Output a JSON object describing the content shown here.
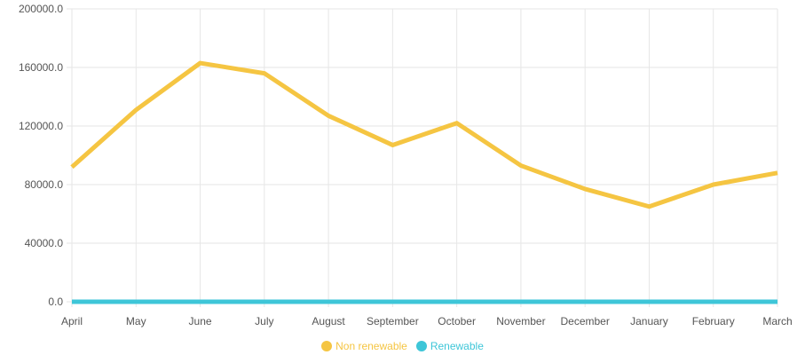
{
  "chart_data": {
    "type": "line",
    "categories": [
      "April",
      "May",
      "June",
      "July",
      "August",
      "September",
      "October",
      "November",
      "December",
      "January",
      "February",
      "March"
    ],
    "series": [
      {
        "name": "Non renewable",
        "color": "#f5c542",
        "values": [
          92000,
          131000,
          163000,
          156000,
          127000,
          107000,
          122000,
          93000,
          77000,
          65000,
          80000,
          88000
        ]
      },
      {
        "name": "Renewable",
        "color": "#3ec6d8",
        "values": [
          0,
          0,
          0,
          0,
          0,
          0,
          0,
          0,
          0,
          0,
          0,
          0
        ]
      }
    ],
    "ylim": [
      0,
      200000
    ],
    "yticks": [
      "0.0",
      "40000.0",
      "80000.0",
      "120000.0",
      "160000.0",
      "200000.0"
    ],
    "ytick_values": [
      0,
      40000,
      80000,
      120000,
      160000,
      200000
    ],
    "grid": true,
    "legend_position": "bottom"
  }
}
